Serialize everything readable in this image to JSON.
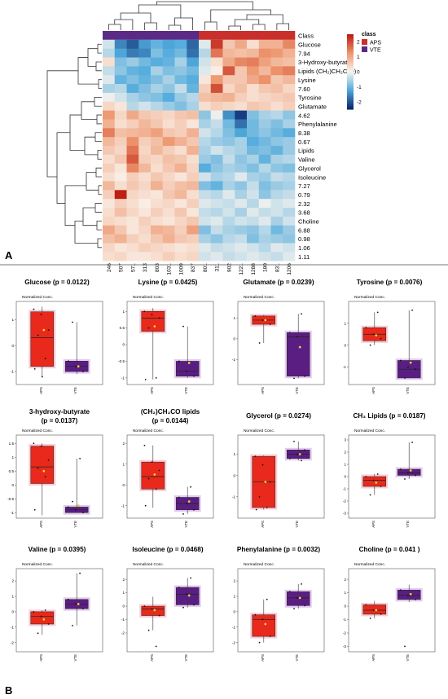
{
  "figure": {
    "panel_a_label": "A",
    "panel_b_label": "B",
    "box_subtitle": "Normalized Conc."
  },
  "colors": {
    "aps": "#e8291b",
    "vte": "#5a1e83",
    "aps_halo": "#f5b7c4",
    "vte_halo": "#d9b7e8",
    "mean_dot": "#e8e04a"
  },
  "chart_data": [
    {
      "type": "heatmap",
      "rows": [
        "Class",
        "Glucose",
        "7.94",
        "3-Hydroxy-butyrate",
        "Lipids (CH₂)CH₂C(O)",
        "Lysine",
        "7.60",
        "Tyrosine",
        "Glutamate",
        "4.62",
        "Phenylalanine",
        "8.38",
        "0.67",
        "Lipids",
        "Valine",
        "Glycerol",
        "Isoleucine",
        "7.27",
        "0.79",
        "2.32",
        "3.68",
        "Choline",
        "6.88",
        "0.98",
        "1.06",
        "1.11"
      ],
      "columns": [
        "246",
        "507",
        "571",
        "313",
        "803",
        "1031",
        "1009",
        "837",
        "801",
        "311",
        "902",
        "1221",
        "1288",
        "180",
        "831",
        "1206"
      ],
      "column_class": [
        "VTE",
        "VTE",
        "VTE",
        "VTE",
        "VTE",
        "VTE",
        "VTE",
        "VTE",
        "APS",
        "APS",
        "APS",
        "APS",
        "APS",
        "APS",
        "APS",
        "APS"
      ],
      "legend": {
        "title": "class",
        "entries": [
          "APS",
          "VTE"
        ]
      },
      "color_scale": {
        "ticks": [
          2,
          1,
          0,
          -1,
          -2
        ],
        "min": -2.5,
        "max": 2.5
      },
      "values": [
        [
          -0.3,
          -1.6,
          -2.0,
          -1.4,
          -1.1,
          -1.3,
          -1.2,
          -1.9,
          -0.2,
          2.2,
          0.6,
          1.0,
          0.3,
          0.9,
          0.9,
          1.4
        ],
        [
          -0.5,
          -1.3,
          -1.7,
          -1.6,
          -0.9,
          -1.2,
          -1.0,
          -1.8,
          -0.5,
          1.6,
          0.8,
          0.7,
          0.8,
          1.3,
          1.2,
          0.9
        ],
        [
          0.3,
          -0.9,
          -0.7,
          -1.0,
          -1.2,
          -1.1,
          -0.6,
          -1.3,
          -0.3,
          0.3,
          1.0,
          1.4,
          1.5,
          1.1,
          0.8,
          0.7
        ],
        [
          -0.4,
          -0.8,
          -1.1,
          -1.2,
          -0.6,
          -0.9,
          -0.8,
          -1.0,
          -0.2,
          0.1,
          1.9,
          0.6,
          1.2,
          0.8,
          1.3,
          1.5
        ],
        [
          -0.2,
          -1.1,
          -0.9,
          -1.1,
          -0.9,
          -0.6,
          -1.0,
          -1.2,
          0.2,
          1.2,
          0.6,
          0.6,
          1.0,
          1.3,
          0.6,
          0.8
        ],
        [
          -0.6,
          -0.5,
          -1.2,
          -0.9,
          -0.6,
          -0.8,
          -0.4,
          -1.1,
          0.5,
          2.0,
          0.4,
          0.7,
          0.3,
          0.6,
          0.7,
          0.4
        ],
        [
          -0.1,
          -0.3,
          -0.6,
          -0.8,
          -0.9,
          -1.2,
          -0.7,
          -0.5,
          0.7,
          0.8,
          0.9,
          0.5,
          0.3,
          0.4,
          0.5,
          0.6
        ],
        [
          0.4,
          0.2,
          -0.5,
          -0.3,
          -0.5,
          -0.7,
          -0.9,
          -0.6,
          0.3,
          0.5,
          0.4,
          0.3,
          0.6,
          0.5,
          0.3,
          0.5
        ],
        [
          1.2,
          0.4,
          1.0,
          0.6,
          0.5,
          0.4,
          0.6,
          0.7,
          -0.8,
          -0.1,
          -1.5,
          -2.3,
          -0.9,
          -0.6,
          -0.5,
          -0.8
        ],
        [
          0.9,
          0.3,
          0.5,
          0.8,
          0.6,
          0.3,
          0.5,
          0.2,
          -0.6,
          -0.4,
          -1.0,
          -1.8,
          -1.0,
          -0.7,
          -0.9,
          -0.6
        ],
        [
          1.5,
          0.7,
          0.8,
          0.9,
          1.1,
          0.6,
          0.5,
          0.9,
          -0.3,
          -0.5,
          -0.9,
          -1.3,
          -1.0,
          -0.8,
          -1.0,
          -1.2
        ],
        [
          0.8,
          0.5,
          1.3,
          0.5,
          0.7,
          1.2,
          0.9,
          0.6,
          -0.5,
          -0.7,
          -0.8,
          -0.6,
          -1.2,
          -1.0,
          -0.8,
          -0.7
        ],
        [
          0.6,
          0.4,
          1.6,
          0.4,
          0.8,
          0.5,
          0.3,
          0.9,
          -0.6,
          -0.3,
          -0.5,
          -0.6,
          -1.0,
          -0.9,
          -1.1,
          -0.7
        ],
        [
          0.3,
          0.6,
          1.9,
          0.5,
          0.4,
          0.7,
          0.6,
          0.3,
          -0.7,
          -0.9,
          -0.4,
          -0.8,
          -0.6,
          -1.1,
          -0.6,
          -0.5
        ],
        [
          0.5,
          0.2,
          1.4,
          0.8,
          0.3,
          0.6,
          0.9,
          0.4,
          -1.2,
          -0.8,
          -0.6,
          -0.7,
          -0.9,
          -0.5,
          -0.8,
          -0.9
        ],
        [
          0.3,
          0.1,
          0.5,
          0.3,
          0.6,
          0.4,
          0.2,
          0.5,
          -0.3,
          -0.6,
          -0.5,
          -0.2,
          -0.6,
          -0.7,
          -0.4,
          -0.5
        ],
        [
          0.8,
          0.3,
          0.6,
          0.4,
          0.9,
          0.5,
          0.7,
          0.8,
          -0.9,
          -1.1,
          -0.6,
          -0.8,
          -0.4,
          -0.9,
          -0.7,
          -0.6
        ],
        [
          0.5,
          2.6,
          0.4,
          0.3,
          0.2,
          0.6,
          0.8,
          0.3,
          -0.4,
          -0.5,
          -0.2,
          -0.6,
          -0.3,
          -0.8,
          -0.5,
          -0.4
        ],
        [
          0.2,
          0.5,
          0.3,
          0.1,
          0.3,
          0.4,
          0.2,
          0.5,
          -0.2,
          -0.3,
          -0.4,
          -0.2,
          -0.5,
          -0.1,
          -0.3,
          -0.2
        ],
        [
          0.3,
          0.7,
          0.4,
          0.2,
          0.5,
          0.3,
          0.6,
          0.2,
          -0.4,
          -0.5,
          -0.3,
          -0.6,
          -0.2,
          -0.4,
          -0.3,
          -0.5
        ],
        [
          0.4,
          0.3,
          0.2,
          0.5,
          0.3,
          0.2,
          0.4,
          0.6,
          -0.3,
          -0.2,
          -0.5,
          -0.3,
          -0.4,
          -0.2,
          -0.6,
          -0.3
        ],
        [
          1.0,
          0.6,
          0.2,
          0.4,
          0.9,
          0.8,
          0.5,
          1.1,
          -0.9,
          -0.4,
          -0.6,
          -0.7,
          -0.8,
          -0.5,
          -1.0,
          -0.7
        ],
        [
          0.7,
          0.9,
          0.5,
          0.3,
          0.6,
          0.9,
          0.6,
          0.5,
          -0.6,
          -0.8,
          -0.5,
          -0.4,
          -0.9,
          -0.6,
          -0.7,
          -0.8
        ],
        [
          0.4,
          0.2,
          0.3,
          0.5,
          0.4,
          0.3,
          0.2,
          0.3,
          -0.2,
          -0.4,
          -0.3,
          -0.2,
          -0.3,
          -0.5,
          -0.2,
          -0.3
        ],
        [
          0.3,
          0.4,
          0.2,
          0.2,
          0.3,
          0.5,
          0.3,
          0.4,
          -0.3,
          -0.2,
          -0.4,
          -0.3,
          -0.2,
          -0.3,
          -0.4,
          -0.2
        ]
      ]
    },
    {
      "type": "box",
      "title": "Glucose (p = 0.0122)",
      "yticks": [
        1,
        0,
        -1
      ],
      "ylim": [
        -1.5,
        1.7
      ],
      "groups": [
        {
          "name": "APS",
          "min": -1.2,
          "q1": -0.8,
          "median": 0.3,
          "q3": 1.3,
          "max": 1.5,
          "mean": 0.6,
          "points": [
            1.4,
            1.2,
            0.6,
            0.4,
            -0.5,
            -0.9,
            -1.2
          ]
        },
        {
          "name": "VTE",
          "min": -1.1,
          "q1": -1.0,
          "median": -0.8,
          "q3": -0.6,
          "max": 0.9,
          "mean": -0.8,
          "points": [
            -0.6,
            -0.8,
            -1.0,
            0.9
          ]
        }
      ]
    },
    {
      "type": "box",
      "title": "Lysine (p = 0.0425)",
      "yticks": [
        1.0,
        0.5,
        0.0,
        -0.5,
        -1.0
      ],
      "ylim": [
        -1.2,
        1.3
      ],
      "groups": [
        {
          "name": "APS",
          "min": -1.05,
          "q1": 0.4,
          "median": 0.8,
          "q3": 1.0,
          "max": 1.1,
          "mean": 0.55,
          "points": [
            1.0,
            0.9,
            0.8,
            0.5,
            -1.0,
            -1.05
          ]
        },
        {
          "name": "VTE",
          "min": -1.0,
          "q1": -0.95,
          "median": -0.8,
          "q3": -0.5,
          "max": 0.55,
          "mean": -0.55,
          "points": [
            -0.5,
            -0.8,
            -0.95,
            0.55
          ]
        }
      ]
    },
    {
      "type": "box",
      "title": "Glutamate (p = 0.0239)",
      "yticks": [
        1,
        0,
        -1
      ],
      "ylim": [
        -2.2,
        1.8
      ],
      "groups": [
        {
          "name": "APS",
          "min": -0.2,
          "q1": 0.7,
          "median": 0.9,
          "q3": 1.1,
          "max": 1.15,
          "mean": 0.9,
          "points": [
            1.1,
            0.9,
            0.7,
            -0.2
          ]
        },
        {
          "name": "VTE",
          "min": -1.9,
          "q1": -1.8,
          "median": 0.1,
          "q3": 0.3,
          "max": 1.2,
          "mean": -0.4,
          "points": [
            0.3,
            0.1,
            -1.8,
            -1.9,
            1.2
          ]
        }
      ]
    },
    {
      "type": "box",
      "title": "Tyrosine (p = 0.0076)",
      "yticks": [
        1,
        0,
        -1
      ],
      "ylim": [
        -1.8,
        2.0
      ],
      "groups": [
        {
          "name": "APS",
          "min": 0.0,
          "q1": 0.2,
          "median": 0.5,
          "q3": 0.8,
          "max": 1.5,
          "mean": 0.45,
          "points": [
            0.8,
            0.5,
            0.3,
            0.0,
            1.5
          ]
        },
        {
          "name": "VTE",
          "min": -1.5,
          "q1": -1.5,
          "median": -1.1,
          "q3": -0.7,
          "max": 1.6,
          "mean": -0.8,
          "points": [
            -0.7,
            -1.0,
            -1.1,
            -1.5,
            1.6
          ]
        }
      ]
    },
    {
      "type": "box",
      "title": "3-hydroxy-butyrate (p = 0.0137)",
      "yticks": [
        1.5,
        1.0,
        0.5,
        0.0,
        -0.5,
        -1.0
      ],
      "ylim": [
        -1.2,
        1.8
      ],
      "groups": [
        {
          "name": "APS",
          "min": -1.1,
          "q1": 0.05,
          "median": 0.65,
          "q3": 1.4,
          "max": 1.5,
          "mean": 0.5,
          "points": [
            1.5,
            1.4,
            0.9,
            0.6,
            0.3,
            -0.9
          ]
        },
        {
          "name": "VTE",
          "min": -1.0,
          "q1": -1.0,
          "median": -0.9,
          "q3": -0.8,
          "max": 0.95,
          "mean": -0.75,
          "points": [
            -0.8,
            -0.9,
            -1.0,
            -0.6,
            0.95
          ]
        }
      ]
    },
    {
      "type": "box",
      "title": "(CH₂)CH₂CO lipids (p = 0.0144)",
      "yticks": [
        2,
        1,
        0,
        -1
      ],
      "ylim": [
        -1.6,
        2.4
      ],
      "groups": [
        {
          "name": "APS",
          "min": -1.1,
          "q1": -0.2,
          "median": 0.4,
          "q3": 1.1,
          "max": 1.9,
          "mean": 0.5,
          "points": [
            1.9,
            1.1,
            0.7,
            0.3,
            -0.2,
            -1.0
          ]
        },
        {
          "name": "VTE",
          "min": -1.4,
          "q1": -1.2,
          "median": -0.9,
          "q3": -0.6,
          "max": -0.1,
          "mean": -0.8,
          "points": [
            -0.6,
            -0.9,
            -1.2,
            -1.4,
            -0.1
          ]
        }
      ]
    },
    {
      "type": "box",
      "title": "Glycerol (p = 0.0274)",
      "yticks": [
        1,
        0,
        -1
      ],
      "ylim": [
        -2.0,
        1.9
      ],
      "groups": [
        {
          "name": "APS",
          "min": -1.6,
          "q1": -1.5,
          "median": -0.3,
          "q3": 0.9,
          "max": 0.95,
          "mean": -0.3,
          "points": [
            0.9,
            0.5,
            -0.3,
            -1.0,
            -1.5,
            -1.6
          ]
        },
        {
          "name": "VTE",
          "min": 0.7,
          "q1": 0.8,
          "median": 1.0,
          "q3": 1.2,
          "max": 1.6,
          "mean": 1.0,
          "points": [
            0.8,
            1.0,
            1.2,
            1.6,
            0.7
          ]
        }
      ]
    },
    {
      "type": "box",
      "title": "CH₃ Lipids (p = 0.0187)",
      "yticks": [
        3,
        2,
        1,
        0,
        -1,
        -2,
        -3
      ],
      "ylim": [
        -3.4,
        3.4
      ],
      "groups": [
        {
          "name": "APS",
          "min": -1.5,
          "q1": -0.8,
          "median": -0.3,
          "q3": 0.0,
          "max": 0.2,
          "mean": -0.5,
          "points": [
            0.0,
            -0.3,
            -0.8,
            -1.5,
            0.2
          ]
        },
        {
          "name": "VTE",
          "min": -0.2,
          "q1": 0.1,
          "median": 0.3,
          "q3": 0.6,
          "max": 2.8,
          "mean": 0.5,
          "points": [
            0.6,
            0.3,
            0.1,
            -0.2,
            2.8
          ]
        }
      ]
    },
    {
      "type": "box",
      "title": "Valine (p = 0.0395)",
      "yticks": [
        2,
        1,
        0,
        -1,
        -2
      ],
      "ylim": [
        -2.6,
        2.8
      ],
      "groups": [
        {
          "name": "APS",
          "min": -1.5,
          "q1": -0.8,
          "median": -0.3,
          "q3": 0.0,
          "max": 0.1,
          "mean": -0.5,
          "points": [
            0.0,
            -0.3,
            -0.8,
            -1.4,
            0.1
          ]
        },
        {
          "name": "VTE",
          "min": -0.9,
          "q1": 0.2,
          "median": 0.5,
          "q3": 0.8,
          "max": 2.5,
          "mean": 0.5,
          "points": [
            0.8,
            0.5,
            0.2,
            -0.9,
            2.5
          ]
        }
      ]
    },
    {
      "type": "box",
      "title": "Isoleucine (p = 0.0468)",
      "yticks": [
        2,
        1,
        0,
        -1,
        -2
      ],
      "ylim": [
        -3.4,
        2.8
      ],
      "groups": [
        {
          "name": "APS",
          "min": -1.8,
          "q1": -0.7,
          "median": -0.2,
          "q3": 0.0,
          "max": 0.7,
          "mean": -0.3,
          "points": [
            0.0,
            -0.2,
            -0.7,
            -1.8,
            -3.0
          ]
        },
        {
          "name": "VTE",
          "min": -0.1,
          "q1": 0.1,
          "median": 0.9,
          "q3": 1.4,
          "max": 2.1,
          "mean": 0.8,
          "points": [
            1.4,
            0.9,
            0.1,
            -0.1,
            2.1
          ]
        }
      ]
    },
    {
      "type": "box",
      "title": "Phenylalanine (p = 0.0032)",
      "yticks": [
        2,
        1,
        0,
        -1,
        -2
      ],
      "ylim": [
        -2.6,
        2.8
      ],
      "groups": [
        {
          "name": "APS",
          "min": -2.0,
          "q1": -1.6,
          "median": -0.5,
          "q3": -0.2,
          "max": 0.8,
          "mean": -0.8,
          "points": [
            -0.2,
            -0.5,
            -1.6,
            -2.0,
            0.8
          ]
        },
        {
          "name": "VTE",
          "min": 0.2,
          "q1": 0.4,
          "median": 0.9,
          "q3": 1.3,
          "max": 1.8,
          "mean": 0.9,
          "points": [
            1.3,
            0.9,
            0.4,
            0.2,
            1.8
          ]
        }
      ]
    },
    {
      "type": "box",
      "title": "Choline (p = 0.041 )",
      "yticks": [
        2,
        1,
        0,
        -1,
        -2,
        -3
      ],
      "ylim": [
        -3.4,
        2.8
      ],
      "groups": [
        {
          "name": "APS",
          "min": -0.9,
          "q1": -0.6,
          "median": -0.3,
          "q3": 0.1,
          "max": 0.4,
          "mean": -0.3,
          "points": [
            0.1,
            -0.3,
            -0.6,
            -0.9
          ]
        },
        {
          "name": "VTE",
          "min": 0.3,
          "q1": 0.5,
          "median": 0.8,
          "q3": 1.2,
          "max": 1.6,
          "mean": 0.9,
          "points": [
            1.2,
            0.8,
            0.5,
            -3.0
          ]
        }
      ]
    }
  ]
}
